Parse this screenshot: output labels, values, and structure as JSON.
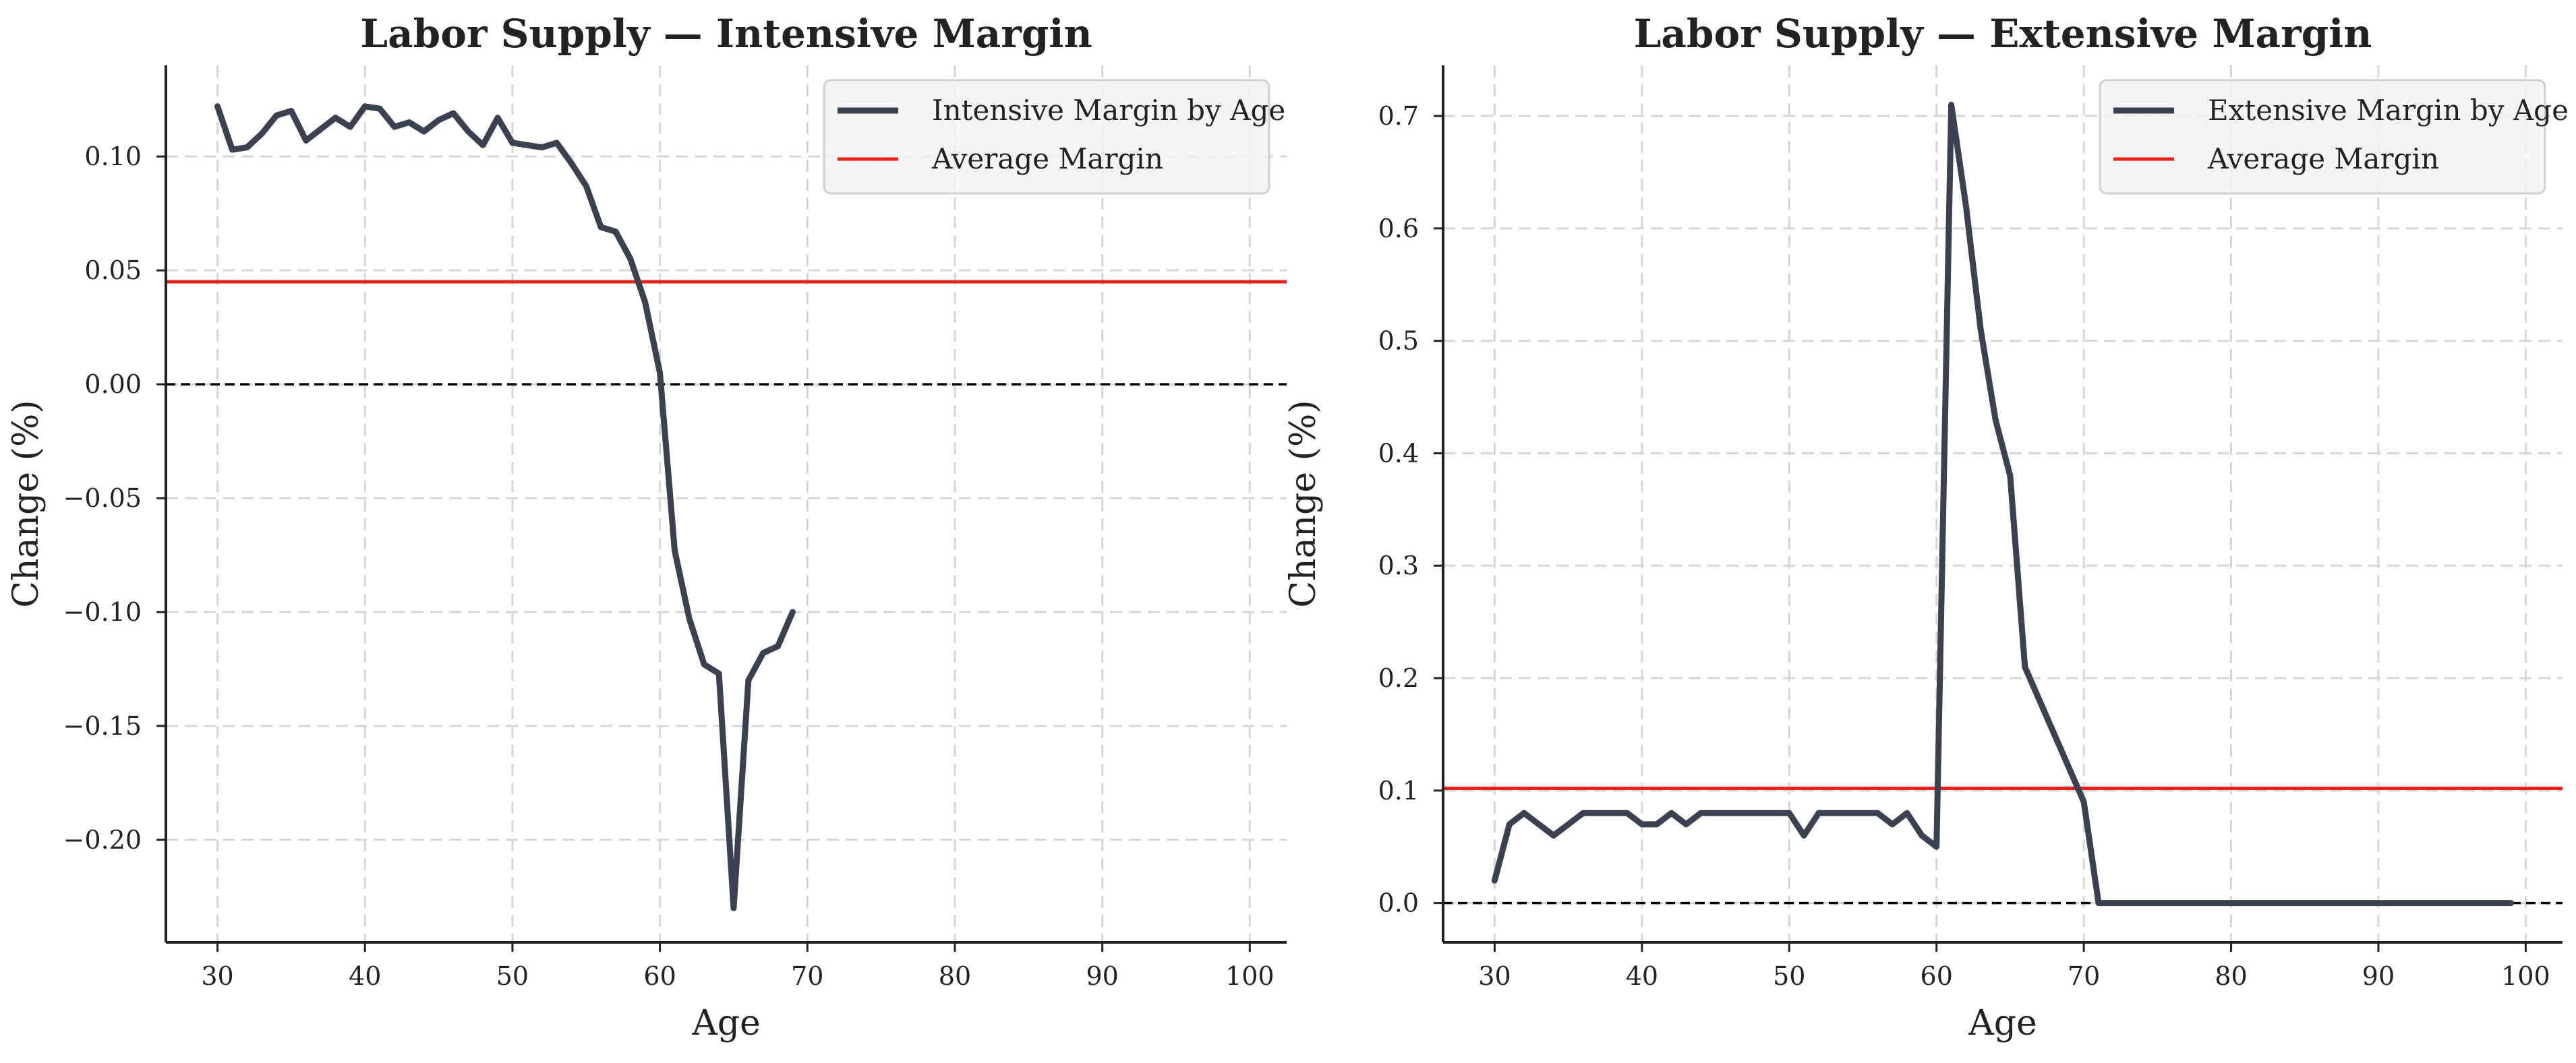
{
  "colors": {
    "series": "#3b4150",
    "average": "#e8211b",
    "zero": "#000000",
    "grid": "#d6d6d6"
  },
  "chart_data": [
    {
      "type": "line",
      "title": "Labor Supply — Intensive Margin",
      "xlabel": "Age",
      "ylabel": "Change (%)",
      "xlim": [
        26.5,
        102.5
      ],
      "ylim": [
        -0.245,
        0.14
      ],
      "xticks": [
        30,
        40,
        50,
        60,
        70,
        80,
        90,
        100
      ],
      "yticks": [
        -0.2,
        -0.15,
        -0.1,
        -0.05,
        0.0,
        0.05,
        0.1
      ],
      "ytick_labels": [
        "−0.20",
        "−0.15",
        "−0.10",
        "−0.05",
        "0.00",
        "0.05",
        "0.10"
      ],
      "grid": true,
      "legend_position": "upper right",
      "series": [
        {
          "name": "Intensive Margin by Age",
          "x": [
            30,
            31,
            32,
            33,
            34,
            35,
            36,
            37,
            38,
            39,
            40,
            41,
            42,
            43,
            44,
            45,
            46,
            47,
            48,
            49,
            50,
            51,
            52,
            53,
            54,
            55,
            56,
            57,
            58,
            59,
            60,
            61,
            62,
            63,
            64,
            65,
            66,
            67,
            68,
            69
          ],
          "y": [
            0.122,
            0.103,
            0.104,
            0.11,
            0.118,
            0.12,
            0.107,
            0.112,
            0.117,
            0.113,
            0.122,
            0.121,
            0.113,
            0.115,
            0.111,
            0.116,
            0.119,
            0.111,
            0.105,
            0.117,
            0.106,
            0.105,
            0.104,
            0.106,
            0.097,
            0.087,
            0.069,
            0.067,
            0.055,
            0.036,
            0.005,
            -0.073,
            -0.103,
            -0.123,
            -0.127,
            -0.23,
            -0.13,
            -0.118,
            -0.115,
            -0.1
          ]
        }
      ],
      "average": {
        "name": "Average Margin",
        "value": 0.045
      },
      "zero_line": 0
    },
    {
      "type": "line",
      "title": "Labor Supply — Extensive Margin",
      "xlabel": "Age",
      "ylabel": "Change (%)",
      "xlim": [
        26.5,
        102.5
      ],
      "ylim": [
        -0.035,
        0.745
      ],
      "xticks": [
        30,
        40,
        50,
        60,
        70,
        80,
        90,
        100
      ],
      "yticks": [
        0.0,
        0.1,
        0.2,
        0.3,
        0.4,
        0.5,
        0.6,
        0.7
      ],
      "ytick_labels": [
        "0.0",
        "0.1",
        "0.2",
        "0.3",
        "0.4",
        "0.5",
        "0.6",
        "0.7"
      ],
      "grid": true,
      "legend_position": "upper right",
      "series": [
        {
          "name": "Extensive Margin by Age",
          "x": [
            30,
            31,
            32,
            33,
            34,
            35,
            36,
            37,
            38,
            39,
            40,
            41,
            42,
            43,
            44,
            45,
            46,
            47,
            48,
            49,
            50,
            51,
            52,
            53,
            54,
            55,
            56,
            57,
            58,
            59,
            60,
            61,
            62,
            63,
            64,
            65,
            66,
            67,
            68,
            69,
            70,
            71,
            72,
            73,
            74,
            75,
            76,
            77,
            78,
            79,
            80,
            81,
            82,
            83,
            84,
            85,
            86,
            87,
            88,
            89,
            90,
            91,
            92,
            93,
            94,
            95,
            96,
            97,
            98,
            99
          ],
          "y": [
            0.02,
            0.07,
            0.08,
            0.07,
            0.06,
            0.07,
            0.08,
            0.08,
            0.08,
            0.08,
            0.07,
            0.07,
            0.08,
            0.07,
            0.08,
            0.08,
            0.08,
            0.08,
            0.08,
            0.08,
            0.08,
            0.06,
            0.08,
            0.08,
            0.08,
            0.08,
            0.08,
            0.07,
            0.08,
            0.06,
            0.05,
            0.71,
            0.62,
            0.51,
            0.43,
            0.38,
            0.21,
            0.18,
            0.15,
            0.12,
            0.09,
            0.0,
            0.0,
            0.0,
            0.0,
            0.0,
            0.0,
            0.0,
            0.0,
            0.0,
            0.0,
            0.0,
            0.0,
            0.0,
            0.0,
            0.0,
            0.0,
            0.0,
            0.0,
            0.0,
            0.0,
            0.0,
            0.0,
            0.0,
            0.0,
            0.0,
            0.0,
            0.0,
            0.0,
            0.0
          ]
        }
      ],
      "average": {
        "name": "Average Margin",
        "value": 0.102
      },
      "zero_line": 0
    }
  ]
}
